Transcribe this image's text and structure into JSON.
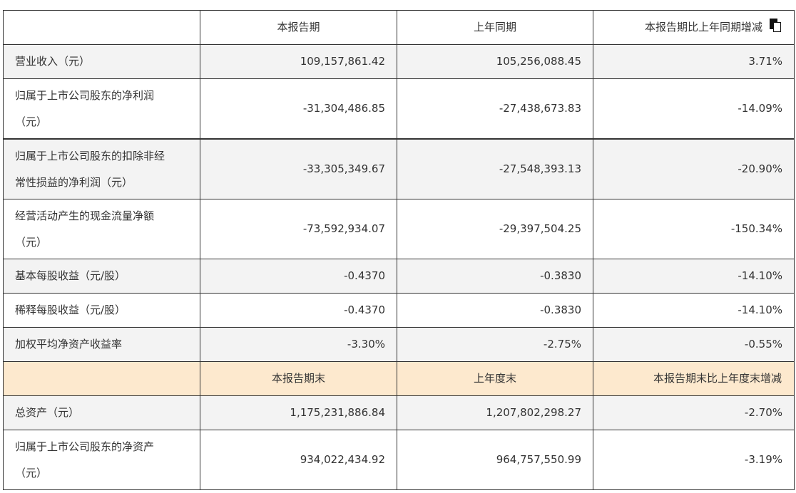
{
  "table": {
    "header_period": {
      "label": "",
      "col1": "本报告期",
      "col2": "上年同期",
      "col3": "本报告期比上年同期增减",
      "icon": "copy-icon"
    },
    "period_rows": [
      {
        "label_lines": [
          "营业收入（元）"
        ],
        "current": "109,157,861.42",
        "prior": "105,256,088.45",
        "change": "3.71%"
      },
      {
        "label_lines": [
          "归属于上市公司股东的净利润",
          "（元）"
        ],
        "current": "-31,304,486.85",
        "prior": "-27,438,673.83",
        "change": "-14.09%"
      },
      {
        "label_lines": [
          "归属于上市公司股东的扣除非经",
          "常性损益的净利润（元）"
        ],
        "current": "-33,305,349.67",
        "prior": "-27,548,393.13",
        "change": "-20.90%"
      },
      {
        "label_lines": [
          "经营活动产生的现金流量净额",
          "（元）"
        ],
        "current": "-73,592,934.07",
        "prior": "-29,397,504.25",
        "change": "-150.34%"
      },
      {
        "label_lines": [
          "基本每股收益（元/股）"
        ],
        "current": "-0.4370",
        "prior": "-0.3830",
        "change": "-14.10%"
      },
      {
        "label_lines": [
          "稀释每股收益（元/股）"
        ],
        "current": "-0.4370",
        "prior": "-0.3830",
        "change": "-14.10%"
      },
      {
        "label_lines": [
          "加权平均净资产收益率"
        ],
        "current": "-3.30%",
        "prior": "-2.75%",
        "change": "-0.55%"
      }
    ],
    "header_balance": {
      "label": "",
      "col1": "本报告期末",
      "col2": "上年度末",
      "col3": "本报告期末比上年度末增减"
    },
    "balance_rows": [
      {
        "label_lines": [
          "总资产（元）"
        ],
        "current": "1,175,231,886.84",
        "prior": "1,207,802,298.27",
        "change": "-2.70%"
      },
      {
        "label_lines": [
          "归属于上市公司股东的净资产",
          "（元）"
        ],
        "current": "934,022,434.92",
        "prior": "964,757,550.99",
        "change": "-3.19%"
      }
    ]
  },
  "colors": {
    "border": "#333333",
    "text": "#333333",
    "row_grey": "#f3f3f3",
    "section_header": "#fde9ce"
  }
}
